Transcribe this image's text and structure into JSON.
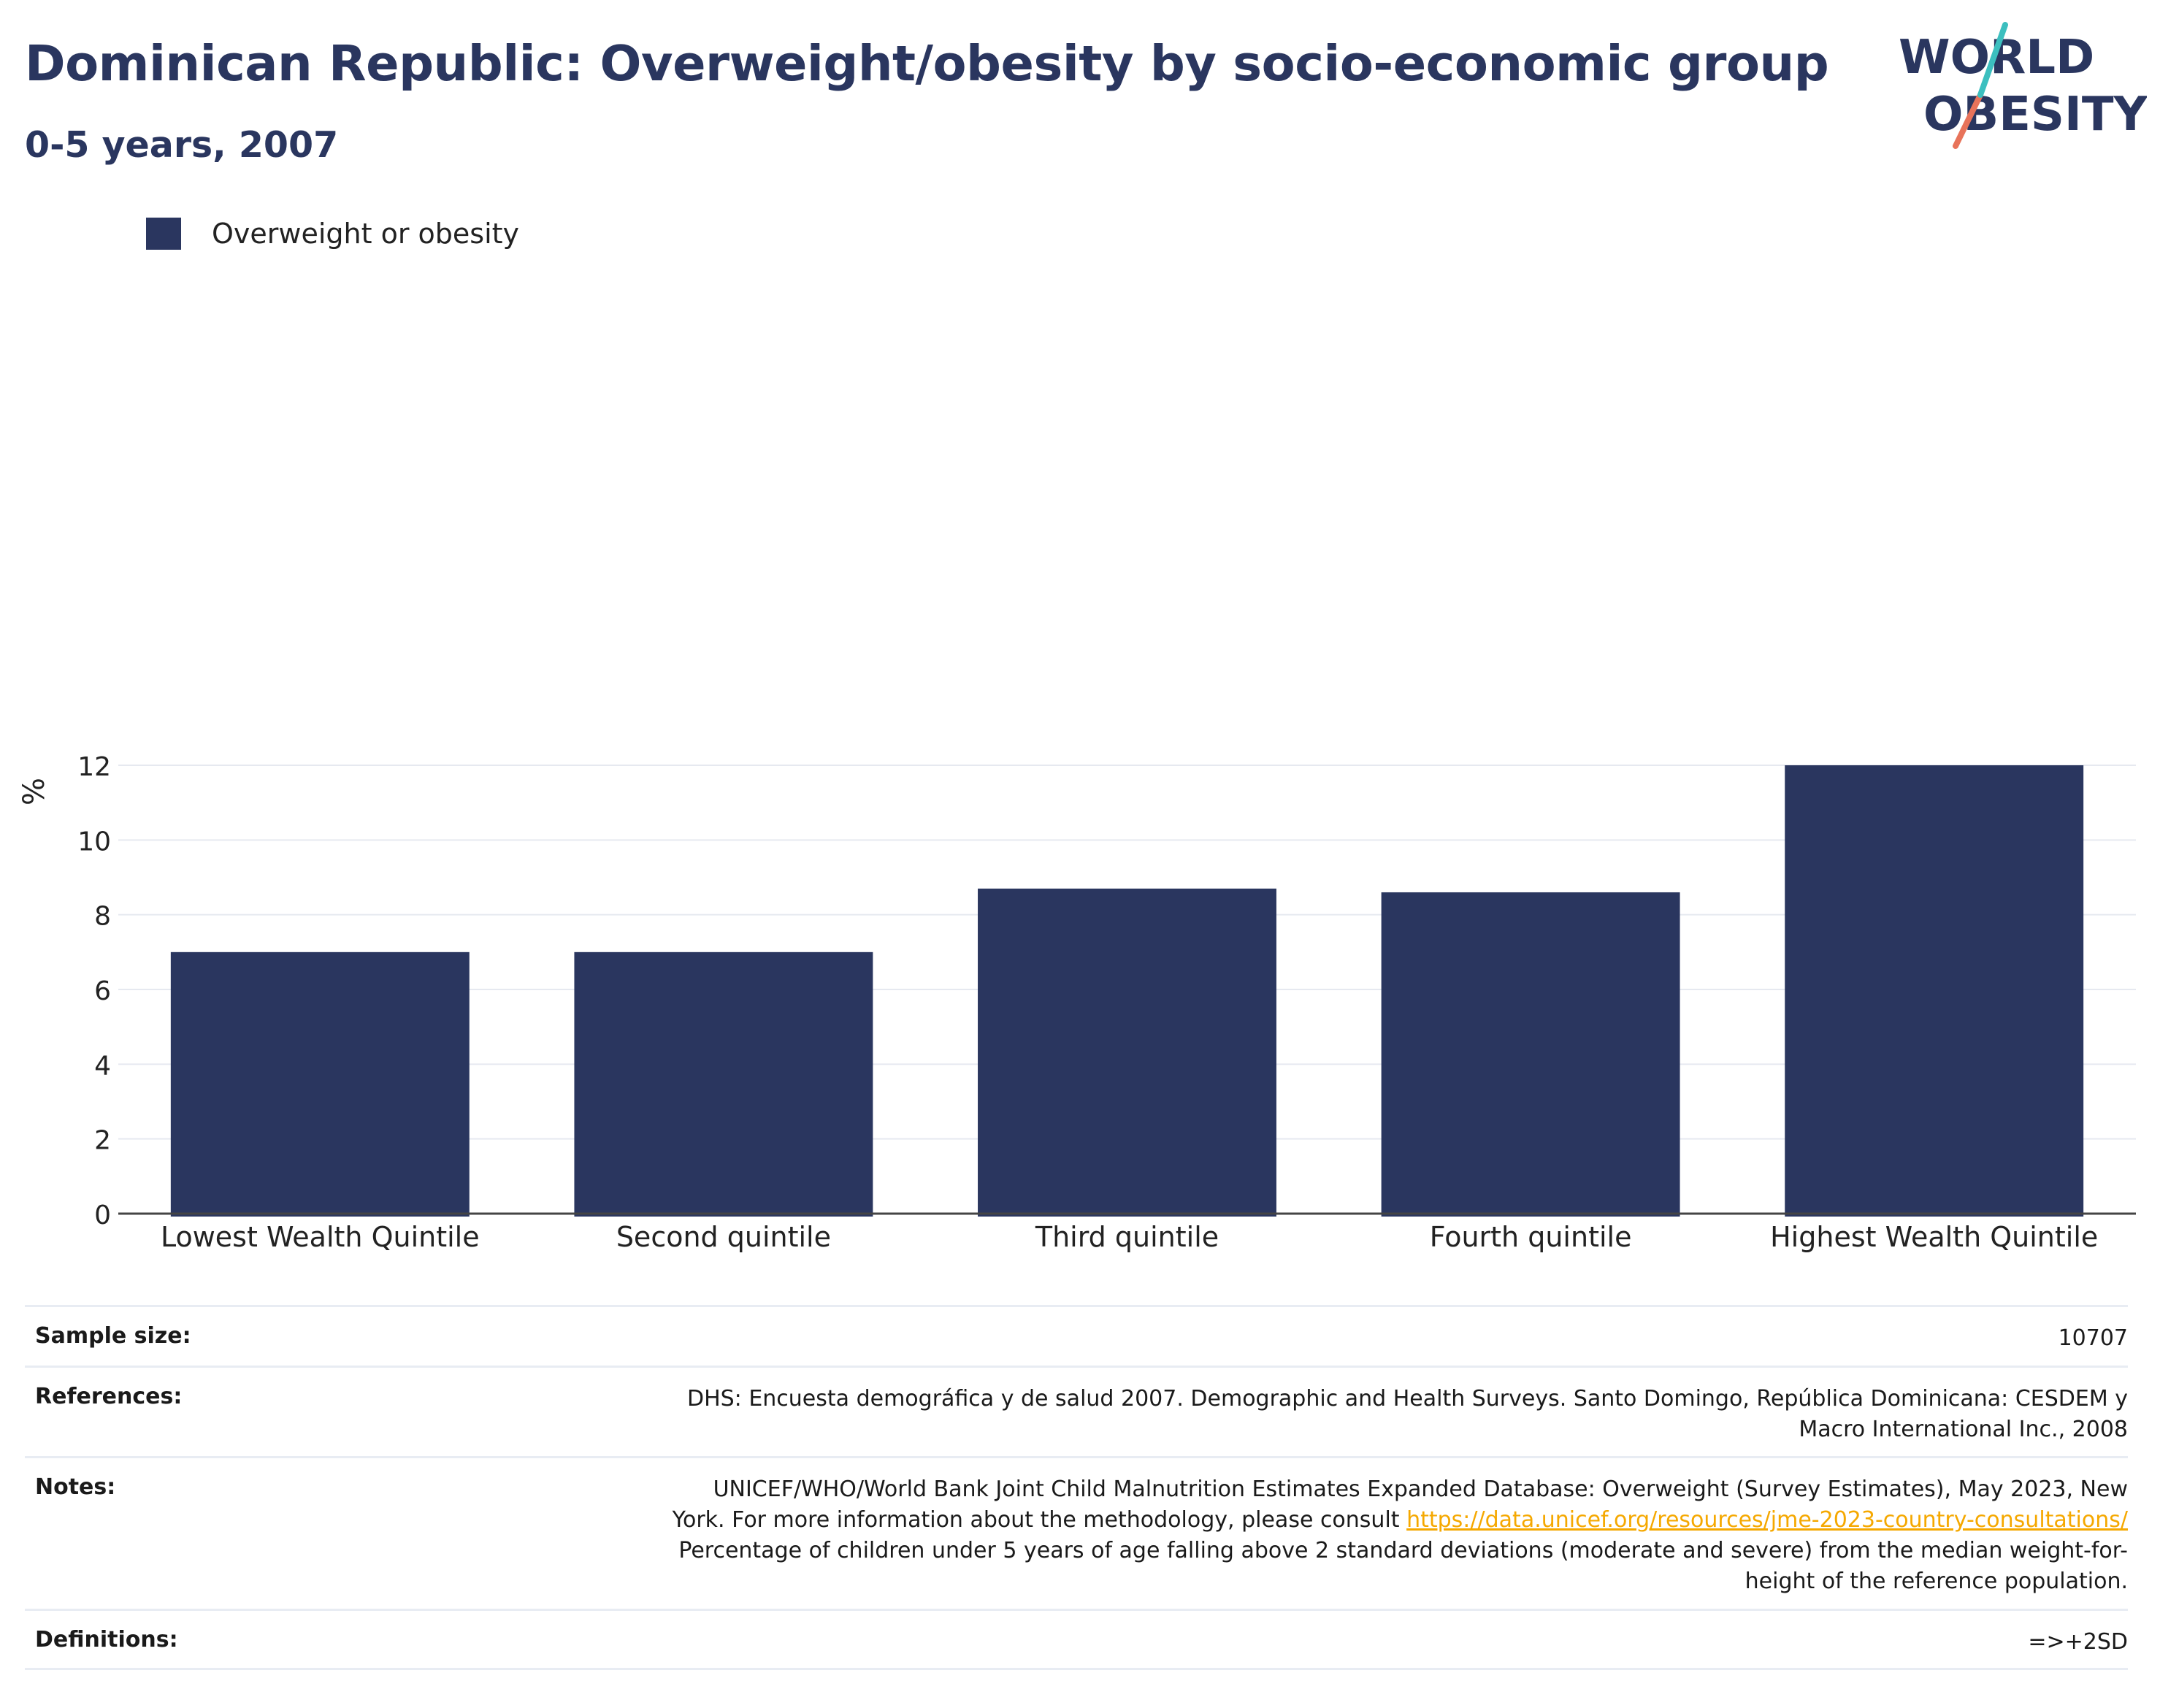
{
  "header": {
    "title": "Dominican Republic: Overweight/obesity by socio-economic group",
    "subtitle": "0-5 years, 2007"
  },
  "logo": {
    "line1": "WORLD",
    "line2": "OBESITY"
  },
  "colors": {
    "bar": "#2a365f",
    "title": "#2a365f",
    "link": "#f5a800",
    "logo_teal": "#3cbfbf",
    "logo_coral": "#e8735a"
  },
  "chart_data": {
    "type": "bar",
    "categories": [
      "Lowest Wealth Quintile",
      "Second quintile",
      "Third quintile",
      "Fourth quintile",
      "Highest Wealth Quintile"
    ],
    "series": [
      {
        "name": "Overweight or obesity",
        "values": [
          7.0,
          7.0,
          8.7,
          8.6,
          12.0
        ]
      }
    ],
    "ylabel": "%",
    "ylim": [
      0,
      13.5
    ],
    "yticks": [
      0,
      2,
      4,
      6,
      8,
      10,
      12
    ],
    "grid": true,
    "legend_position": "top-left"
  },
  "info": {
    "sample_size_label": "Sample size:",
    "sample_size_value": "10707",
    "references_label": "References:",
    "references_line1": "DHS: Encuesta demográfica y de salud 2007. Demographic and Health Surveys. Santo Domingo, República Dominicana: CESDEM y",
    "references_line2": "Macro International Inc., 2008",
    "notes_label": "Notes:",
    "notes_line1": "UNICEF/WHO/World Bank Joint Child Malnutrition Estimates Expanded Database: Overweight (Survey Estimates), May 2023, New",
    "notes_line2_prefix": "York. For more information about the methodology, please consult",
    "notes_link": "https://data.unicef.org/resources/jme-2023-country-consultations/",
    "notes_line3": "Percentage of children under 5 years of age falling above 2 standard deviations (moderate and severe) from the median weight-for-",
    "notes_line4": "height of the reference population.",
    "definitions_label": "Definitions:",
    "definitions_value": "=>+2SD"
  }
}
